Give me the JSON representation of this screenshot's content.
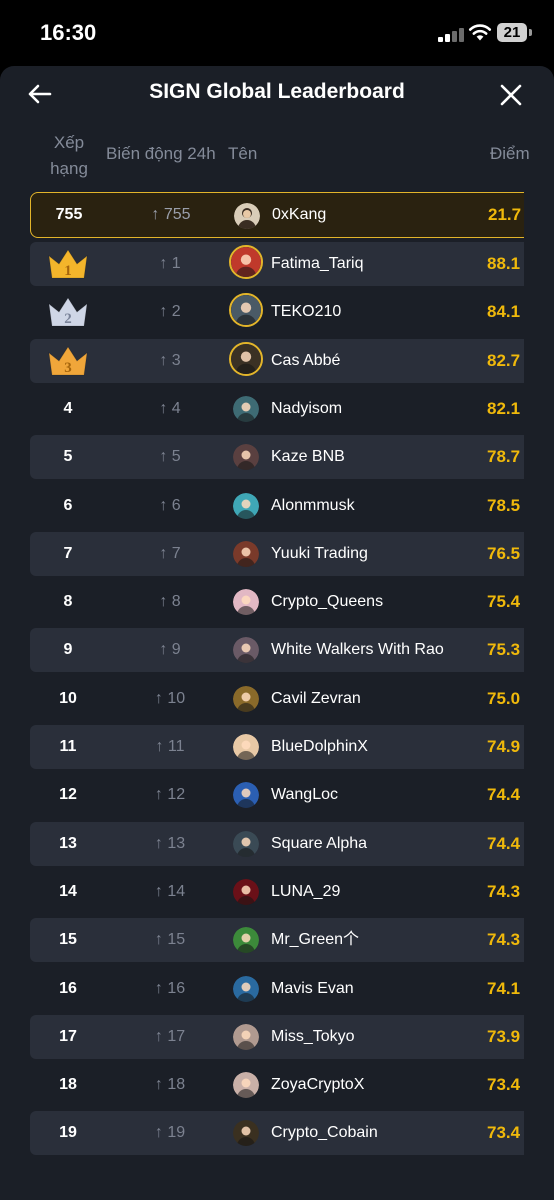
{
  "status": {
    "time": "16:30",
    "battery": "21"
  },
  "header": {
    "title": "SIGN Global Leaderboard"
  },
  "columns": {
    "rank": "Xếp hạng",
    "change": "Biến động 24h",
    "name": "Tên",
    "points": "Điểm"
  },
  "colors": {
    "accent": "#f0b90b",
    "highlight_border": "#e3b52a",
    "background": "#1b1f27",
    "row_alt": "#2a2f3a"
  },
  "me": {
    "rank": "755",
    "change": "↑ 755",
    "name": "0xKang",
    "points": "21.7"
  },
  "rows": [
    {
      "rank": "1",
      "change": "↑ 1",
      "name": "Fatima_Tariq",
      "points": "88.1",
      "crown": "gold-crown-icon"
    },
    {
      "rank": "2",
      "change": "↑ 2",
      "name": "TEKO210",
      "points": "84.1",
      "crown": "silver-crown-icon"
    },
    {
      "rank": "3",
      "change": "↑ 3",
      "name": "Cas Abbé",
      "points": "82.7",
      "crown": "bronze-crown-icon"
    },
    {
      "rank": "4",
      "change": "↑ 4",
      "name": "Nadyisom",
      "points": "82.1"
    },
    {
      "rank": "5",
      "change": "↑ 5",
      "name": "Kaze BNB",
      "points": "78.7"
    },
    {
      "rank": "6",
      "change": "↑ 6",
      "name": "Alonmmusk",
      "points": "78.5"
    },
    {
      "rank": "7",
      "change": "↑ 7",
      "name": "Yuuki Trading",
      "points": "76.5"
    },
    {
      "rank": "8",
      "change": "↑ 8",
      "name": "Crypto_Queens",
      "points": "75.4"
    },
    {
      "rank": "9",
      "change": "↑ 9",
      "name": "White Walkers With Rao",
      "points": "75.3"
    },
    {
      "rank": "10",
      "change": "↑ 10",
      "name": "Cavil Zevran",
      "points": "75.0"
    },
    {
      "rank": "11",
      "change": "↑ 11",
      "name": "BlueDolphinX",
      "points": "74.9"
    },
    {
      "rank": "12",
      "change": "↑ 12",
      "name": "WangLoc",
      "points": "74.4"
    },
    {
      "rank": "13",
      "change": "↑ 13",
      "name": "Square Alpha",
      "points": "74.4"
    },
    {
      "rank": "14",
      "change": "↑ 14",
      "name": "LUNA_29",
      "points": "74.3"
    },
    {
      "rank": "15",
      "change": "↑ 15",
      "name": "Mr_Green个",
      "points": "74.3"
    },
    {
      "rank": "16",
      "change": "↑ 16",
      "name": "Mavis Evan",
      "points": "74.1"
    },
    {
      "rank": "17",
      "change": "↑ 17",
      "name": "Miss_Tokyo",
      "points": "73.9"
    },
    {
      "rank": "18",
      "change": "↑ 18",
      "name": "ZoyaCryptoX",
      "points": "73.4"
    },
    {
      "rank": "19",
      "change": "↑ 19",
      "name": "Crypto_Cobain",
      "points": "73.4"
    }
  ]
}
